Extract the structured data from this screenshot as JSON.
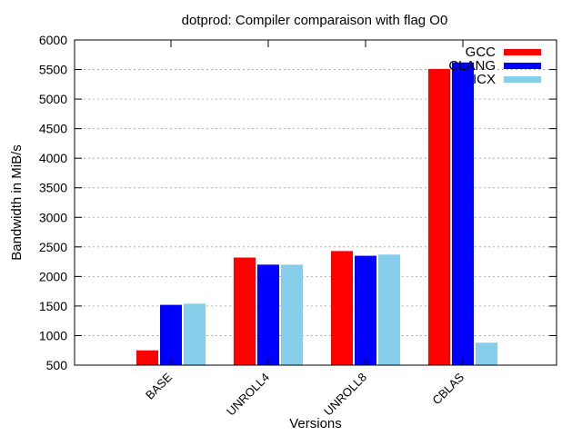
{
  "chart_data": {
    "type": "bar",
    "title": "dotprod: Compiler comparaison with flag O0",
    "xlabel": "Versions",
    "ylabel": "Bandwidth in MiB/s",
    "categories": [
      "BASE",
      "UNROLL4",
      "UNROLL8",
      "CBLAS"
    ],
    "series": [
      {
        "name": "GCC",
        "color": "#ff0000",
        "values": [
          750,
          2320,
          2430,
          5510
        ]
      },
      {
        "name": "CLANG",
        "color": "#0000ff",
        "values": [
          1520,
          2200,
          2350,
          5620
        ]
      },
      {
        "name": "ICX",
        "color": "#87ceeb",
        "values": [
          1540,
          2200,
          2370,
          880
        ]
      }
    ],
    "ylim": [
      500,
      6000
    ],
    "yticks": [
      500,
      1000,
      1500,
      2000,
      2500,
      3000,
      3500,
      4000,
      4500,
      5000,
      5500,
      6000
    ],
    "grid": true,
    "legend_position": "top-right"
  }
}
